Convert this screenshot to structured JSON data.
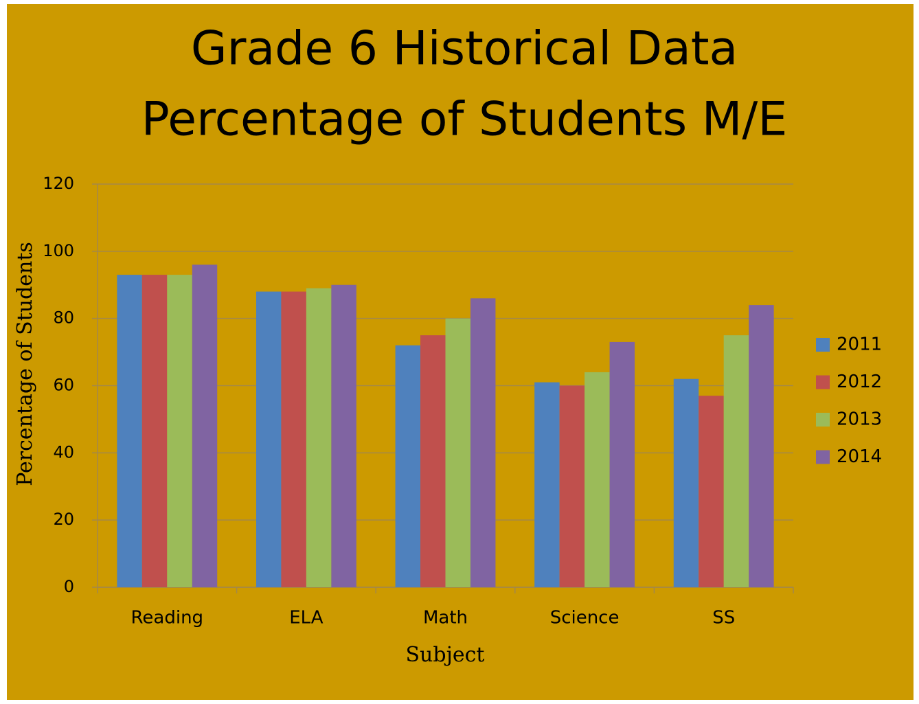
{
  "chart_data": {
    "type": "bar",
    "title": "Grade 6 Historical Data",
    "subtitle": "Percentage of Students M/E",
    "x_label": "Subject",
    "y_label": "Percentage of Students",
    "categories": [
      "Reading",
      "ELA",
      "Math",
      "Science",
      "SS"
    ],
    "series": [
      {
        "name": "2011",
        "color": "#4f81bd",
        "values": [
          93,
          88,
          72,
          61,
          62
        ]
      },
      {
        "name": "2012",
        "color": "#c0504d",
        "values": [
          93,
          88,
          75,
          60,
          57
        ]
      },
      {
        "name": "2013",
        "color": "#9bbb59",
        "values": [
          93,
          89,
          80,
          64,
          75
        ]
      },
      {
        "name": "2014",
        "color": "#8064a2",
        "values": [
          96,
          90,
          86,
          73,
          84
        ]
      }
    ],
    "ylim": [
      0,
      120
    ],
    "yticks": [
      0,
      20,
      40,
      60,
      80,
      100,
      120
    ],
    "grid": true,
    "legend": "right"
  }
}
